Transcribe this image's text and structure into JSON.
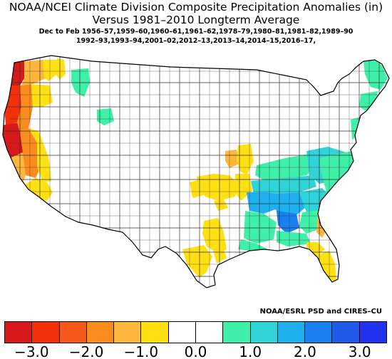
{
  "title": {
    "line1": "NOAA/NCEI Climate Division Composite Precipitation Anomalies (in)",
    "line2": "Versus 1981–2010 Longterm Average",
    "years_line1": "Dec to Feb  1956–57,1959–60,1960–61,1961–62,1978–79,1980–81,1981–82,1989–90",
    "years_line2": "1992–93,1993–94,2001–02,2012–13,2013–14,2014–15,2016–17,"
  },
  "credit": "NOAA/ESRL PSD and CIRES–CU",
  "legend": {
    "colors": [
      "#d7191c",
      "#f2300a",
      "#f7581a",
      "#fa8c1e",
      "#fcb73c",
      "#ffe012",
      "#ffffff",
      "#ffffff",
      "#3ff0a8",
      "#2fd4d8",
      "#1fb0f0",
      "#1a7ff0",
      "#1f5ae8",
      "#2233f0"
    ],
    "ticks": [
      {
        "label": "−3.0",
        "value": -3.0
      },
      {
        "label": "−2.0",
        "value": -2.0
      },
      {
        "label": "−1.0",
        "value": -1.0
      },
      {
        "label": "0.0",
        "value": 0.0
      },
      {
        "label": "1.0",
        "value": 1.0
      },
      {
        "label": "2.0",
        "value": 2.0
      },
      {
        "label": "3.0",
        "value": 3.0
      }
    ],
    "min": -3.5,
    "max": 3.5
  }
}
